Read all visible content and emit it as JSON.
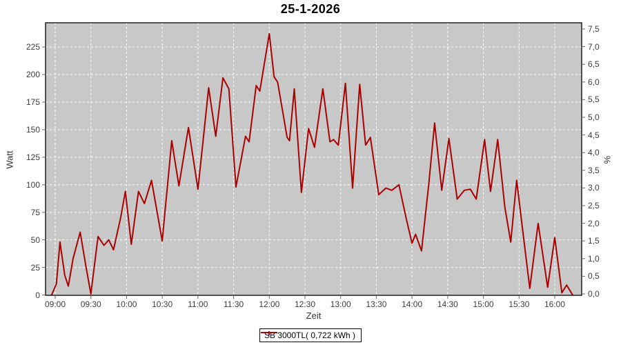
{
  "chart": {
    "title": "25-1-2026",
    "xlabel": "Zeit",
    "ylabel_left": "Watt",
    "ylabel_right": "%",
    "legend_label": "SB 3000TL( 0,722 kWh )"
  },
  "chart_data": {
    "type": "line",
    "title": "25-1-2026",
    "xlabel": "Zeit",
    "ylabel_left": "Watt",
    "ylabel_right": "%",
    "grid": true,
    "legend_position": "bottom",
    "colors": {
      "series": "#aa0000",
      "plot_background": "#c8c8c8",
      "gridline": "#ffffff",
      "plot_border": "#000000",
      "tick_mark": "#666666",
      "tick_text": "#3d3d3d"
    },
    "x_ticks": [
      "09:00",
      "09:30",
      "10:00",
      "10:30",
      "11:00",
      "11:30",
      "12:00",
      "12:30",
      "13:00",
      "13:30",
      "14:00",
      "14:30",
      "15:00",
      "15:30",
      "16:00"
    ],
    "left_axis": {
      "ticks": [
        0,
        25,
        50,
        75,
        100,
        125,
        150,
        175,
        200,
        225
      ],
      "min": 0,
      "max": 247
    },
    "right_axis": {
      "tick_labels": [
        "0,0",
        "0,5",
        "1,0",
        "1,5",
        "2,0",
        "2,5",
        "3,0",
        "3,5",
        "4,0",
        "4,5",
        "5,0",
        "5,5",
        "6,0",
        "6,5",
        "7,0",
        "7,5"
      ],
      "min": 0.0,
      "max": 7.5,
      "step": 0.5
    },
    "series": [
      {
        "name": "SB 3000TL( 0,722 kWh )",
        "color": "#aa0000",
        "points": [
          [
            "08:57",
            0
          ],
          [
            "09:01",
            10
          ],
          [
            "09:04",
            48
          ],
          [
            "09:08",
            18
          ],
          [
            "09:11",
            8
          ],
          [
            "09:15",
            33
          ],
          [
            "09:21",
            57
          ],
          [
            "09:26",
            25
          ],
          [
            "09:30",
            1
          ],
          [
            "09:36",
            53
          ],
          [
            "09:41",
            45
          ],
          [
            "09:45",
            50
          ],
          [
            "09:49",
            41
          ],
          [
            "09:55",
            70
          ],
          [
            "09:59",
            94
          ],
          [
            "10:04",
            46
          ],
          [
            "10:10",
            94
          ],
          [
            "10:15",
            83
          ],
          [
            "10:21",
            104
          ],
          [
            "10:30",
            49
          ],
          [
            "10:38",
            140
          ],
          [
            "10:44",
            99
          ],
          [
            "10:52",
            152
          ],
          [
            "11:00",
            96
          ],
          [
            "11:09",
            188
          ],
          [
            "11:15",
            144
          ],
          [
            "11:21",
            197
          ],
          [
            "11:26",
            187
          ],
          [
            "11:32",
            98
          ],
          [
            "11:40",
            144
          ],
          [
            "11:43",
            139
          ],
          [
            "11:49",
            190
          ],
          [
            "11:52",
            185
          ],
          [
            "12:00",
            237
          ],
          [
            "12:04",
            198
          ],
          [
            "12:07",
            193
          ],
          [
            "12:15",
            143
          ],
          [
            "12:17",
            140
          ],
          [
            "12:21",
            187
          ],
          [
            "12:27",
            93
          ],
          [
            "12:33",
            151
          ],
          [
            "12:38",
            134
          ],
          [
            "12:45",
            187
          ],
          [
            "12:51",
            139
          ],
          [
            "12:54",
            141
          ],
          [
            "12:58",
            136
          ],
          [
            "13:04",
            192
          ],
          [
            "13:10",
            97
          ],
          [
            "13:16",
            191
          ],
          [
            "13:21",
            136
          ],
          [
            "13:25",
            143
          ],
          [
            "13:32",
            91
          ],
          [
            "13:38",
            97
          ],
          [
            "13:43",
            95
          ],
          [
            "13:49",
            100
          ],
          [
            "13:55",
            70
          ],
          [
            "14:00",
            47
          ],
          [
            "14:03",
            55
          ],
          [
            "14:08",
            40
          ],
          [
            "14:14",
            100
          ],
          [
            "14:19",
            156
          ],
          [
            "14:25",
            95
          ],
          [
            "14:31",
            142
          ],
          [
            "14:38",
            87
          ],
          [
            "14:44",
            95
          ],
          [
            "14:49",
            96
          ],
          [
            "14:54",
            87
          ],
          [
            "15:01",
            141
          ],
          [
            "15:06",
            94
          ],
          [
            "15:12",
            141
          ],
          [
            "15:18",
            80
          ],
          [
            "15:23",
            48
          ],
          [
            "15:28",
            104
          ],
          [
            "15:34",
            50
          ],
          [
            "15:39",
            6
          ],
          [
            "15:46",
            65
          ],
          [
            "15:54",
            7
          ],
          [
            "16:00",
            52
          ],
          [
            "16:06",
            2
          ],
          [
            "16:10",
            9
          ],
          [
            "16:15",
            0
          ]
        ]
      }
    ]
  }
}
